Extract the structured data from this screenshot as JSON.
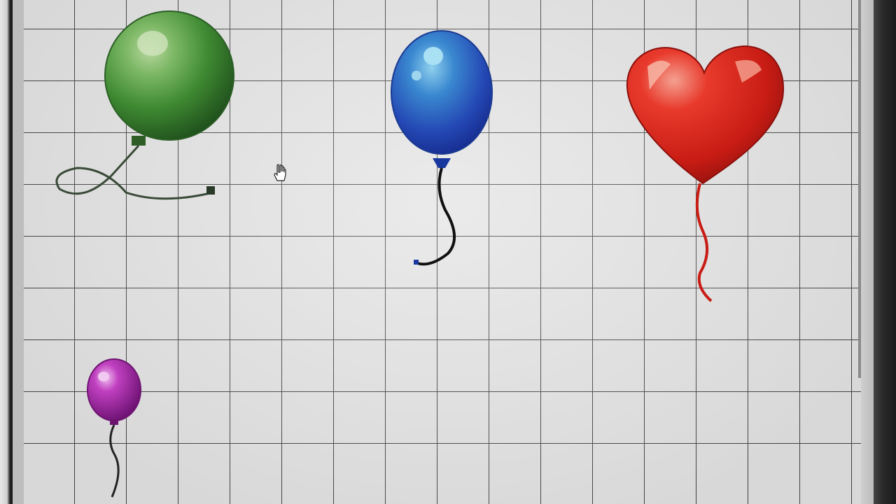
{
  "colors": {
    "green": "#3f8a32",
    "green_dark": "#245a1f",
    "green_light": "#8fc47a",
    "blue": "#2c63c4",
    "blue_dark": "#1838a0",
    "blue_light": "#7ec6e8",
    "red": "#d8251c",
    "red_dark": "#9a1410",
    "red_light": "#f08070",
    "purple": "#b02cb0",
    "purple_dark": "#6e1470",
    "purple_light": "#e098e0",
    "grid_line": "#444444",
    "canvas_bg": "#e4e4e4"
  },
  "canvas": {
    "objects": [
      {
        "name": "green-balloon",
        "kind": "round-balloon",
        "color": "green"
      },
      {
        "name": "blue-balloon",
        "kind": "oval-balloon",
        "color": "blue"
      },
      {
        "name": "red-heart-balloon",
        "kind": "heart-balloon",
        "color": "red"
      },
      {
        "name": "purple-balloon",
        "kind": "small-balloon",
        "color": "purple"
      }
    ],
    "cursor": "hand-cursor-icon"
  }
}
